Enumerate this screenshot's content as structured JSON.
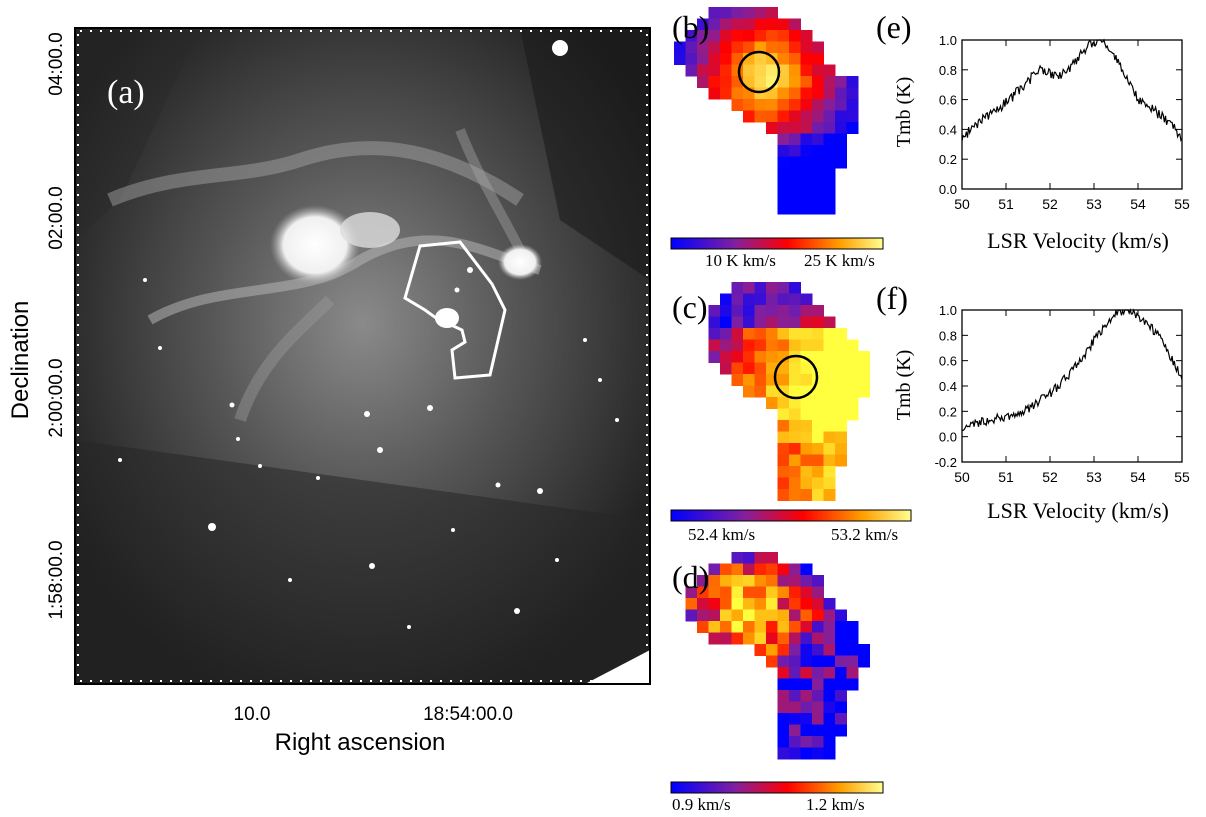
{
  "panel_a": {
    "label": "(a)",
    "xlabel": "Right ascension",
    "ylabel": "Declination",
    "x_ticks": [
      "10.0",
      "18:54:00.0"
    ],
    "y_ticks": [
      "04:00.0",
      "02:00.0",
      "2:00:00.0",
      "1:58:00.0"
    ]
  },
  "panel_b": {
    "label": "(b)",
    "colorbar_ticks": [
      "10 K km/s",
      "25 K km/s"
    ],
    "colormap": [
      "#0000ff",
      "#8020a0",
      "#ff0000",
      "#ffa000",
      "#ffff80"
    ]
  },
  "panel_c": {
    "label": "(c)",
    "colorbar_ticks": [
      "52.4 km/s",
      "53.2 km/s"
    ],
    "colormap": [
      "#0000ff",
      "#8020a0",
      "#ff0000",
      "#ffa000",
      "#ffff40"
    ]
  },
  "panel_d": {
    "label": "(d)",
    "colorbar_ticks": [
      "0.9 km/s",
      "1.2 km/s"
    ],
    "colormap": [
      "#0000ff",
      "#8020a0",
      "#ff0000",
      "#ffa000",
      "#ffff40"
    ]
  },
  "chart_data": [
    {
      "type": "line",
      "label": "(e)",
      "xlabel": "LSR Velocity (km/s)",
      "ylabel": "Tmb (K)",
      "xlim": [
        50,
        55
      ],
      "ylim": [
        0.0,
        1.0
      ],
      "x_ticks": [
        "50",
        "51",
        "52",
        "53",
        "54",
        "55"
      ],
      "y_ticks": [
        "0.0",
        "0.2",
        "0.4",
        "0.6",
        "0.8",
        "1.0"
      ],
      "x": [
        50.0,
        50.25,
        50.5,
        50.75,
        51.0,
        51.25,
        51.5,
        51.75,
        52.0,
        52.25,
        52.5,
        52.75,
        53.0,
        53.1,
        53.25,
        53.5,
        53.75,
        54.0,
        54.25,
        54.5,
        54.75,
        55.0
      ],
      "y": [
        0.33,
        0.42,
        0.48,
        0.52,
        0.58,
        0.65,
        0.72,
        0.8,
        0.78,
        0.76,
        0.82,
        0.92,
        0.99,
        1.0,
        0.97,
        0.88,
        0.75,
        0.6,
        0.55,
        0.5,
        0.44,
        0.32
      ]
    },
    {
      "type": "line",
      "label": "(f)",
      "xlabel": "LSR Velocity (km/s)",
      "ylabel": "Tmb (K)",
      "xlim": [
        50,
        55
      ],
      "ylim": [
        -0.2,
        1.0
      ],
      "x_ticks": [
        "50",
        "51",
        "52",
        "53",
        "54",
        "55"
      ],
      "y_ticks": [
        "-0.2",
        "0.0",
        "0.2",
        "0.4",
        "0.6",
        "0.8",
        "1.0"
      ],
      "x": [
        50.0,
        50.25,
        50.5,
        50.75,
        51.0,
        51.25,
        51.5,
        51.75,
        52.0,
        52.25,
        52.5,
        52.75,
        53.0,
        53.25,
        53.5,
        53.75,
        54.0,
        54.25,
        54.5,
        54.75,
        55.0
      ],
      "y": [
        0.08,
        0.1,
        0.12,
        0.14,
        0.15,
        0.18,
        0.22,
        0.28,
        0.34,
        0.42,
        0.52,
        0.63,
        0.76,
        0.88,
        0.98,
        1.0,
        0.96,
        0.88,
        0.78,
        0.62,
        0.48
      ]
    }
  ]
}
